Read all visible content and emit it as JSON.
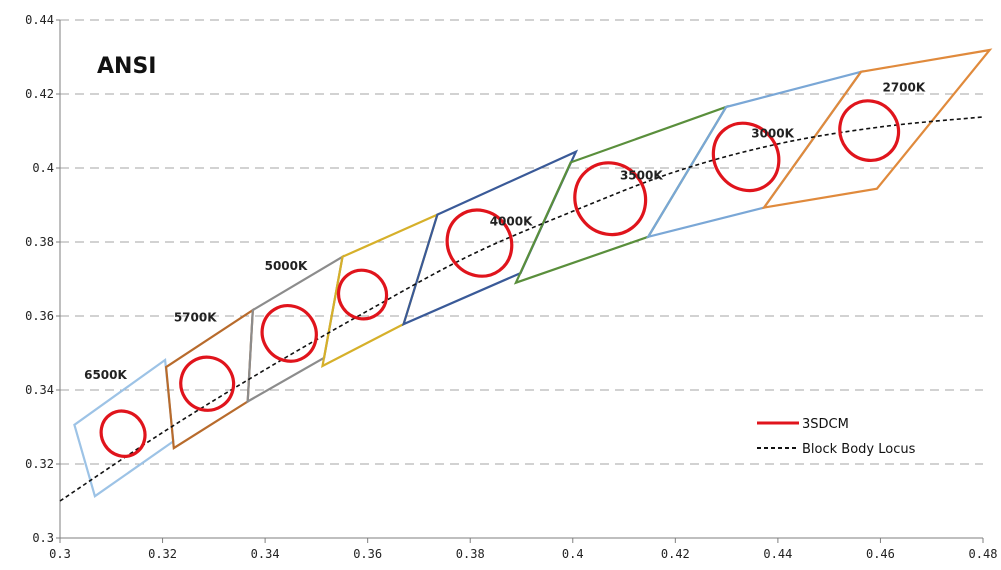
{
  "chart_data": {
    "type": "scatter",
    "title": "ANSI",
    "xlim": [
      0.3,
      0.48
    ],
    "ylim": [
      0.3,
      0.44
    ],
    "x_ticks": [
      "0.3",
      "0.32",
      "0.34",
      "0.36",
      "0.38",
      "0.4",
      "0.42",
      "0.44",
      "0.46",
      "0.48"
    ],
    "y_ticks": [
      "0.3",
      "0.32",
      "0.34",
      "0.36",
      "0.38",
      "0.4",
      "0.42",
      "0.44"
    ],
    "grid": "horizontal-dashed",
    "legend_position": "bottom-right",
    "series": [
      {
        "name": "3SDCM",
        "color": "#e0141c",
        "ellipses": [
          {
            "cct": "6500K",
            "cx": 0.3123,
            "cy": 0.3282,
            "rx": 0.0045,
            "ry": 0.0058,
            "angle": 58
          },
          {
            "cct": "5700K",
            "cx": 0.3287,
            "cy": 0.3417,
            "rx": 0.0052,
            "ry": 0.0071,
            "angle": 58
          },
          {
            "cct": "5000K",
            "cx": 0.3447,
            "cy": 0.3553,
            "rx": 0.0055,
            "ry": 0.0072,
            "angle": 58
          },
          {
            "cct": "4000K",
            "cx": 0.3818,
            "cy": 0.3797,
            "rx": 0.0066,
            "ry": 0.0085,
            "angle": 54
          },
          {
            "cct": "3500K",
            "cx": 0.4073,
            "cy": 0.3917,
            "rx": 0.0071,
            "ry": 0.0094,
            "angle": 53
          },
          {
            "cct": "3000K",
            "cx": 0.4338,
            "cy": 0.403,
            "rx": 0.0068,
            "ry": 0.0085,
            "angle": 53
          },
          {
            "cct": "2700K",
            "cx": 0.4578,
            "cy": 0.4101,
            "rx": 0.0059,
            "ry": 0.0078,
            "angle": 53
          },
          {
            "cct": "",
            "cx": 0.359,
            "cy": 0.3658,
            "rx": 0.0048,
            "ry": 0.0064,
            "angle": 55
          }
        ]
      },
      {
        "name": "Block Body Locus",
        "color": "#111111",
        "points": [
          [
            0.3,
            0.31
          ],
          [
            0.32,
            0.3285
          ],
          [
            0.34,
            0.3455
          ],
          [
            0.36,
            0.3614
          ],
          [
            0.38,
            0.3764
          ],
          [
            0.4,
            0.3883
          ],
          [
            0.42,
            0.399
          ],
          [
            0.44,
            0.4065
          ],
          [
            0.46,
            0.4111
          ],
          [
            0.48,
            0.4138
          ]
        ]
      }
    ],
    "quadrangles": [
      {
        "label": "6500K",
        "color": "#9dc3e6",
        "points": [
          [
            0.3028,
            0.3306
          ],
          [
            0.3221,
            0.3261
          ],
          [
            0.3205,
            0.3481
          ],
          [
            0.3068,
            0.3113
          ]
        ],
        "order": [
          0,
          3,
          1,
          2
        ]
      },
      {
        "label": "5700K",
        "color": "#b86b2c",
        "points": [
          [
            0.3207,
            0.3462
          ],
          [
            0.3376,
            0.3616
          ],
          [
            0.3366,
            0.3369
          ],
          [
            0.3222,
            0.3243
          ]
        ]
      },
      {
        "label": "5000K",
        "color": "#8c8c8c",
        "points": [
          [
            0.3376,
            0.3616
          ],
          [
            0.3551,
            0.376
          ],
          [
            0.3515,
            0.3487
          ],
          [
            0.3366,
            0.3369
          ]
        ]
      },
      {
        "label": "",
        "color": "#d6b02a",
        "points": [
          [
            0.3551,
            0.376
          ],
          [
            0.3736,
            0.3874
          ],
          [
            0.367,
            0.3578
          ],
          [
            0.3512,
            0.3465
          ]
        ]
      },
      {
        "label": "4000K",
        "color": "#3a5a98",
        "points": [
          [
            0.3736,
            0.3874
          ],
          [
            0.4006,
            0.4044
          ],
          [
            0.3898,
            0.3716
          ],
          [
            0.367,
            0.3578
          ]
        ]
      },
      {
        "label": "3500K",
        "color": "#5a8f3c",
        "points": [
          [
            0.3996,
            0.4015
          ],
          [
            0.4299,
            0.4165
          ],
          [
            0.4147,
            0.3814
          ],
          [
            0.3889,
            0.369
          ]
        ]
      },
      {
        "label": "3000K",
        "color": "#7aa7d6",
        "points": [
          [
            0.4299,
            0.4165
          ],
          [
            0.4562,
            0.426
          ],
          [
            0.4373,
            0.3893
          ],
          [
            0.4147,
            0.3814
          ]
        ]
      },
      {
        "label": "2700K",
        "color": "#e08a3c",
        "points": [
          [
            0.4562,
            0.426
          ],
          [
            0.4813,
            0.4319
          ],
          [
            0.4593,
            0.3944
          ],
          [
            0.4373,
            0.3893
          ]
        ]
      }
    ],
    "annotations": [
      {
        "text": "6500K",
        "x": 0.3047,
        "y": 0.343
      },
      {
        "text": "5700K",
        "x": 0.3222,
        "y": 0.3585
      },
      {
        "text": "5000K",
        "x": 0.3399,
        "y": 0.3725
      },
      {
        "text": "4000K",
        "x": 0.3838,
        "y": 0.3845
      },
      {
        "text": "3500K",
        "x": 0.4092,
        "y": 0.3969
      },
      {
        "text": "3000K",
        "x": 0.4348,
        "y": 0.4083
      },
      {
        "text": "2700K",
        "x": 0.4604,
        "y": 0.4207
      }
    ]
  }
}
